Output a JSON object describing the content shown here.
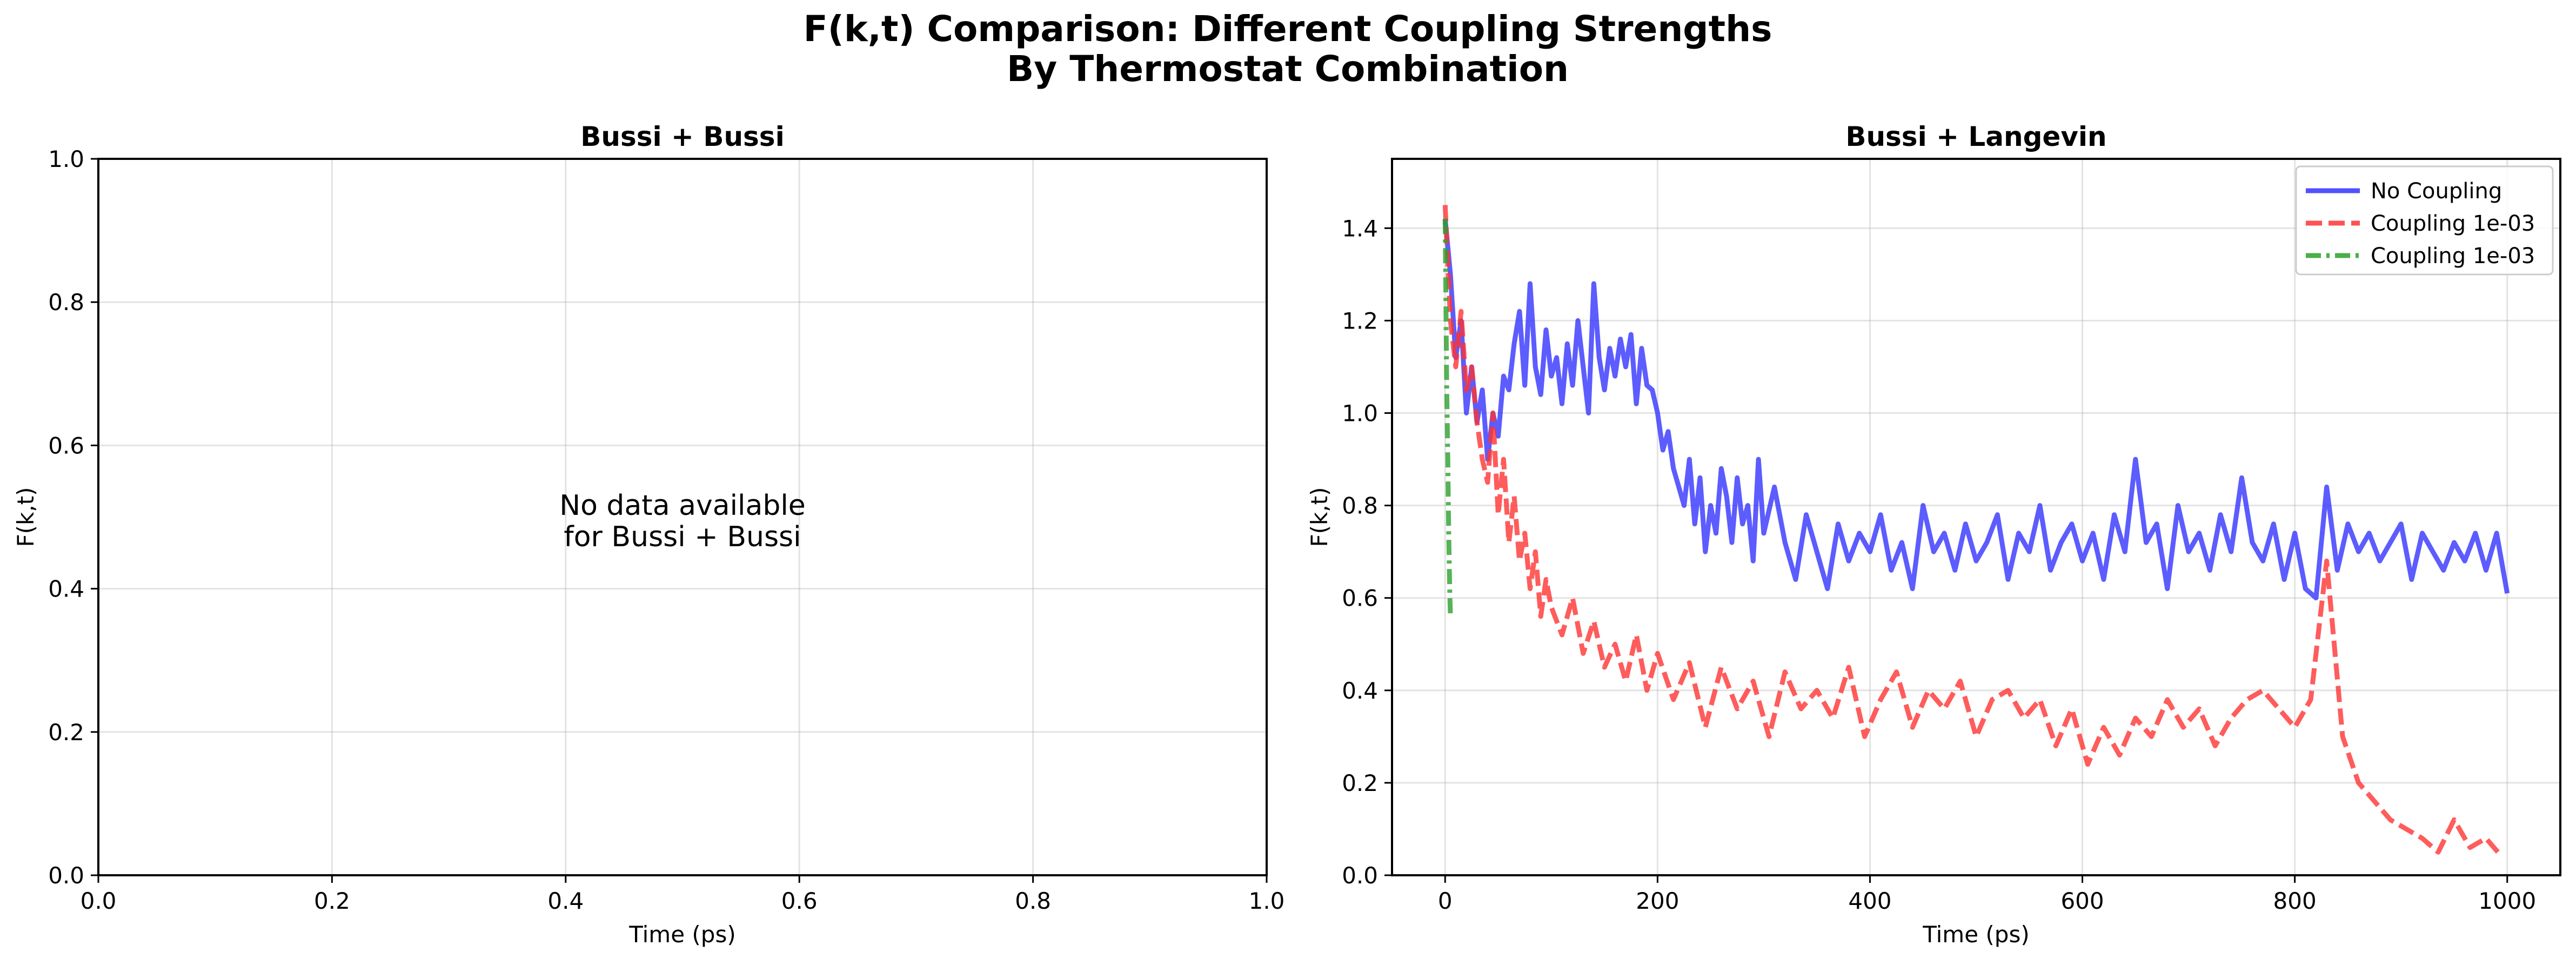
{
  "figure": {
    "suptitle_line1": "F(k,t) Comparison: Different Coupling Strengths",
    "suptitle_line2": "By Thermostat Combination"
  },
  "chart_data": [
    {
      "type": "line",
      "title": "Bussi + Bussi",
      "xlabel": "Time (ps)",
      "ylabel": "F(k,t)",
      "xlim": [
        0.0,
        1.0
      ],
      "ylim": [
        0.0,
        1.0
      ],
      "xticks": [
        "0.0",
        "0.2",
        "0.4",
        "0.6",
        "0.8",
        "1.0"
      ],
      "yticks": [
        "0.0",
        "0.2",
        "0.4",
        "0.6",
        "0.8",
        "1.0"
      ],
      "grid": true,
      "message_line1": "No data available",
      "message_line2": "for Bussi + Bussi",
      "series": []
    },
    {
      "type": "line",
      "title": "Bussi + Langevin",
      "xlabel": "Time (ps)",
      "ylabel": "F(k,t)",
      "xlim": [
        -50,
        1050
      ],
      "ylim": [
        0.0,
        1.55
      ],
      "xticks": [
        "0",
        "200",
        "400",
        "600",
        "800",
        "1000"
      ],
      "yticks": [
        "0.0",
        "0.2",
        "0.4",
        "0.6",
        "0.8",
        "1.0",
        "1.2",
        "1.4"
      ],
      "grid": true,
      "legend_position": "top-right",
      "series": [
        {
          "name": "No Coupling",
          "color": "#3333ff",
          "style": "solid",
          "x": [
            0,
            5,
            10,
            15,
            20,
            25,
            30,
            35,
            40,
            45,
            50,
            55,
            60,
            65,
            70,
            75,
            80,
            85,
            90,
            95,
            100,
            105,
            110,
            115,
            120,
            125,
            130,
            135,
            140,
            145,
            150,
            155,
            160,
            165,
            170,
            175,
            180,
            185,
            190,
            195,
            200,
            205,
            210,
            215,
            220,
            225,
            230,
            235,
            240,
            245,
            250,
            255,
            260,
            265,
            270,
            275,
            280,
            285,
            290,
            295,
            300,
            310,
            320,
            330,
            340,
            350,
            360,
            370,
            380,
            390,
            400,
            410,
            420,
            430,
            440,
            450,
            460,
            470,
            480,
            490,
            500,
            510,
            520,
            530,
            540,
            550,
            560,
            570,
            580,
            590,
            600,
            610,
            620,
            630,
            640,
            650,
            660,
            670,
            680,
            690,
            700,
            710,
            720,
            730,
            740,
            750,
            760,
            770,
            780,
            790,
            800,
            810,
            820,
            830,
            840,
            850,
            860,
            870,
            880,
            890,
            900,
            910,
            920,
            930,
            940,
            950,
            960,
            970,
            980,
            990,
            1000
          ],
          "y": [
            1.42,
            1.3,
            1.12,
            1.2,
            1.0,
            1.1,
            0.98,
            1.05,
            0.9,
            1.0,
            0.95,
            1.08,
            1.05,
            1.15,
            1.22,
            1.06,
            1.28,
            1.1,
            1.04,
            1.18,
            1.08,
            1.12,
            1.02,
            1.15,
            1.06,
            1.2,
            1.1,
            1.0,
            1.28,
            1.12,
            1.05,
            1.14,
            1.08,
            1.16,
            1.1,
            1.17,
            1.02,
            1.14,
            1.06,
            1.05,
            1.0,
            0.92,
            0.96,
            0.88,
            0.84,
            0.8,
            0.9,
            0.76,
            0.86,
            0.7,
            0.8,
            0.74,
            0.88,
            0.82,
            0.72,
            0.86,
            0.76,
            0.8,
            0.68,
            0.9,
            0.74,
            0.84,
            0.72,
            0.64,
            0.78,
            0.7,
            0.62,
            0.76,
            0.68,
            0.74,
            0.7,
            0.78,
            0.66,
            0.72,
            0.62,
            0.8,
            0.7,
            0.74,
            0.66,
            0.76,
            0.68,
            0.72,
            0.78,
            0.64,
            0.74,
            0.7,
            0.8,
            0.66,
            0.72,
            0.76,
            0.68,
            0.74,
            0.64,
            0.78,
            0.7,
            0.9,
            0.72,
            0.76,
            0.62,
            0.8,
            0.7,
            0.74,
            0.66,
            0.78,
            0.7,
            0.86,
            0.72,
            0.68,
            0.76,
            0.64,
            0.74,
            0.62,
            0.6,
            0.84,
            0.66,
            0.76,
            0.7,
            0.74,
            0.68,
            0.72,
            0.76,
            0.64,
            0.74,
            0.7,
            0.66,
            0.72,
            0.68,
            0.74,
            0.66,
            0.74,
            0.61
          ]
        },
        {
          "name": "Coupling 1e-03",
          "color": "#ff3333",
          "style": "dashed",
          "x": [
            0,
            5,
            10,
            15,
            20,
            25,
            30,
            35,
            40,
            45,
            50,
            55,
            60,
            65,
            70,
            75,
            80,
            85,
            90,
            95,
            100,
            110,
            120,
            130,
            140,
            150,
            160,
            170,
            180,
            190,
            200,
            215,
            230,
            245,
            260,
            275,
            290,
            305,
            320,
            335,
            350,
            365,
            380,
            395,
            410,
            425,
            440,
            455,
            470,
            485,
            500,
            515,
            530,
            545,
            560,
            575,
            590,
            605,
            620,
            635,
            650,
            665,
            680,
            695,
            710,
            725,
            740,
            755,
            770,
            785,
            800,
            815,
            830,
            845,
            860,
            875,
            890,
            905,
            920,
            935,
            950,
            965,
            980,
            995
          ],
          "y": [
            1.45,
            1.2,
            1.1,
            1.22,
            1.05,
            1.1,
            0.98,
            0.9,
            0.85,
            1.0,
            0.78,
            0.9,
            0.72,
            0.82,
            0.68,
            0.74,
            0.62,
            0.7,
            0.56,
            0.64,
            0.58,
            0.52,
            0.6,
            0.48,
            0.55,
            0.45,
            0.5,
            0.42,
            0.52,
            0.4,
            0.48,
            0.38,
            0.46,
            0.32,
            0.45,
            0.36,
            0.42,
            0.3,
            0.44,
            0.36,
            0.4,
            0.34,
            0.45,
            0.3,
            0.38,
            0.44,
            0.32,
            0.4,
            0.36,
            0.42,
            0.3,
            0.38,
            0.4,
            0.34,
            0.38,
            0.28,
            0.36,
            0.24,
            0.32,
            0.26,
            0.34,
            0.3,
            0.38,
            0.32,
            0.36,
            0.28,
            0.34,
            0.38,
            0.4,
            0.36,
            0.32,
            0.38,
            0.68,
            0.3,
            0.2,
            0.16,
            0.12,
            0.1,
            0.08,
            0.05,
            0.12,
            0.06,
            0.08,
            0.04
          ]
        },
        {
          "name": "Coupling 1e-03",
          "color": "#2ca02c",
          "style": "dashdot",
          "x": [
            0,
            0.5,
            1,
            1.5,
            2,
            2.5,
            3,
            3.5,
            4,
            4.5,
            5
          ],
          "y": [
            1.42,
            1.3,
            1.18,
            1.05,
            0.98,
            0.9,
            0.8,
            0.72,
            0.66,
            0.6,
            0.56
          ]
        }
      ]
    }
  ]
}
